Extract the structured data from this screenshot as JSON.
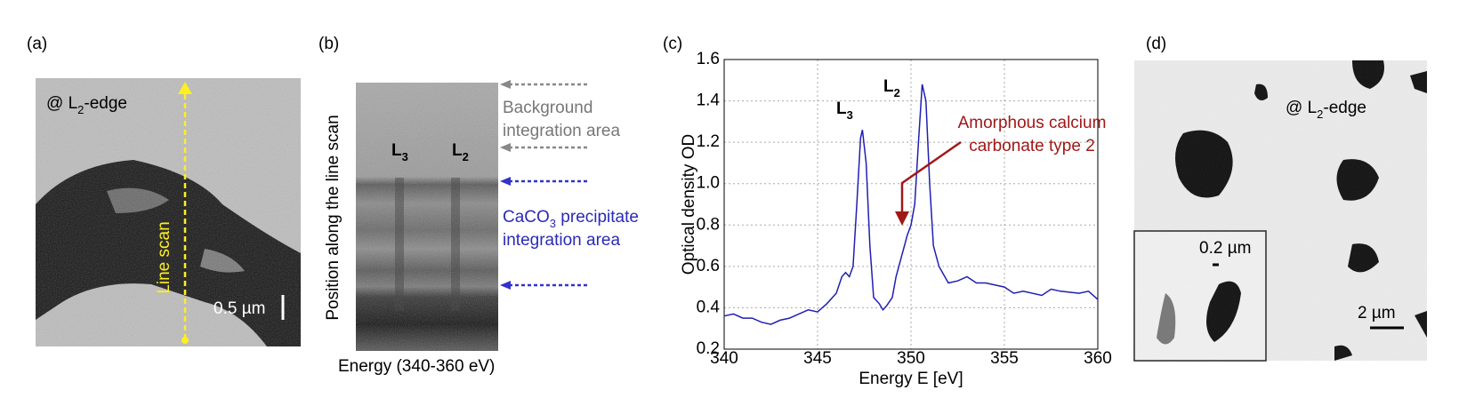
{
  "panel_a": {
    "label": "(a)",
    "edge": {
      "text": "@ L",
      "sub": "2",
      "rest": "-edge"
    },
    "line_scan": "Line scan",
    "scale_bar": "0.5 µm"
  },
  "panel_b": {
    "label": "(b)",
    "peaks": [
      {
        "text": "L",
        "sub": "3"
      },
      {
        "text": "L",
        "sub": "2"
      }
    ],
    "background": [
      "Background",
      "integration area"
    ],
    "precipitate": [
      {
        "text": "CaCO",
        "sub": "3",
        "rest": " precipitate"
      },
      {
        "text": "integration area"
      }
    ],
    "y_label": "Position along the line scan",
    "x_label": "Energy (340-360 eV)"
  },
  "panel_c": {
    "label": "(c)"
  },
  "chart_data": {
    "type": "line",
    "x_label": "Energy E [eV]",
    "y_label": "Optical density OD",
    "annotations": [
      {
        "text": "L",
        "sub": "3"
      },
      {
        "text": "L",
        "sub": "2"
      }
    ],
    "arrow_note": [
      "Amorphous calcium",
      "carbonate type 2"
    ],
    "color": "#1f1fb4",
    "grid": true,
    "xlim": [
      340,
      360
    ],
    "xticks": [
      340,
      345,
      350,
      355,
      360
    ],
    "ylim": [
      0.2,
      1.6
    ],
    "yticks": [
      0.2,
      0.4,
      0.6,
      0.8,
      {
        "value": 1,
        "label": "1.0"
      },
      1.2,
      1.4,
      1.6
    ],
    "x": [
      340,
      340.5,
      341,
      341.5,
      342,
      342.5,
      343,
      343.5,
      344,
      344.5,
      345,
      345.5,
      346,
      346.3,
      346.5,
      346.7,
      346.9,
      347.1,
      347.3,
      347.4,
      347.6,
      347.8,
      348,
      348.3,
      348.5,
      348.7,
      349,
      349.2,
      349.5,
      349.8,
      350,
      350.2,
      350.4,
      350.6,
      350.8,
      351,
      351.2,
      351.5,
      352,
      352.5,
      353,
      353.5,
      354,
      355,
      355.5,
      356,
      357,
      357.5,
      358,
      359,
      359.5,
      360
    ],
    "values": [
      0.36,
      0.37,
      0.35,
      0.35,
      0.33,
      0.32,
      0.34,
      0.35,
      0.37,
      0.39,
      0.38,
      0.42,
      0.47,
      0.55,
      0.57,
      0.55,
      0.6,
      0.9,
      1.22,
      1.26,
      1.1,
      0.7,
      0.45,
      0.42,
      0.39,
      0.41,
      0.45,
      0.55,
      0.65,
      0.75,
      0.8,
      0.9,
      1.2,
      1.48,
      1.4,
      1.0,
      0.7,
      0.6,
      0.52,
      0.53,
      0.55,
      0.52,
      0.52,
      0.5,
      0.47,
      0.48,
      0.46,
      0.49,
      0.48,
      0.47,
      0.48,
      0.44
    ]
  },
  "panel_d": {
    "label": "(d)",
    "edge": {
      "text": "@ L",
      "sub": "2",
      "rest": "-edge"
    },
    "inset_scale": "0.2 µm",
    "scale_bar": "2 µm"
  }
}
